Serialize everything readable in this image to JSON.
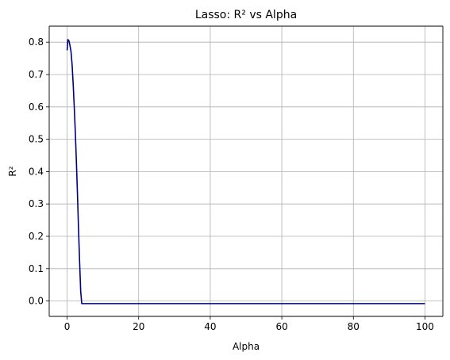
{
  "chart_data": {
    "type": "line",
    "title": "Lasso: R² vs Alpha",
    "xlabel": "Alpha",
    "ylabel": "R²",
    "xlim": [
      -5,
      105
    ],
    "ylim": [
      -0.0475,
      0.8495
    ],
    "xticks": [
      0,
      20,
      40,
      60,
      80,
      100
    ],
    "xtick_labels": [
      "0",
      "20",
      "40",
      "60",
      "80",
      "100"
    ],
    "yticks": [
      0.0,
      0.1,
      0.2,
      0.3,
      0.4,
      0.5,
      0.6,
      0.7,
      0.8
    ],
    "ytick_labels": [
      "0.0",
      "0.1",
      "0.2",
      "0.3",
      "0.4",
      "0.5",
      "0.6",
      "0.7",
      "0.8"
    ],
    "grid": true,
    "legend": "none",
    "series": [
      {
        "color": "#000080",
        "x": [
          0.01,
          0.2,
          0.5,
          0.8,
          1.1,
          1.4,
          1.7,
          2.0,
          2.3,
          2.6,
          2.9,
          3.2,
          3.5,
          3.8,
          4.1,
          4.3,
          5,
          10,
          20,
          40,
          60,
          80,
          100
        ],
        "y": [
          0.775,
          0.808,
          0.805,
          0.79,
          0.77,
          0.73,
          0.67,
          0.6,
          0.52,
          0.43,
          0.33,
          0.22,
          0.12,
          0.03,
          -0.008,
          -0.008,
          -0.008,
          -0.008,
          -0.008,
          -0.008,
          -0.008,
          -0.008,
          -0.008
        ]
      }
    ]
  }
}
